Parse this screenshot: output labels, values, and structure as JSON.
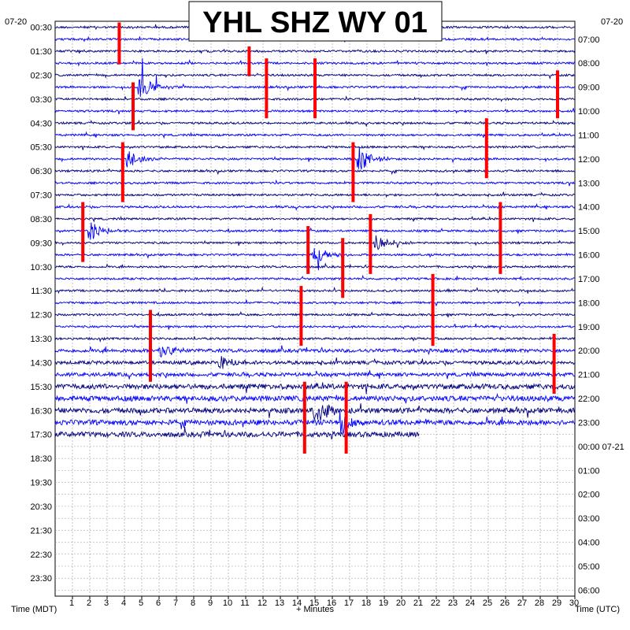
{
  "title": "YHL SHZ WY 01",
  "date_left": "07-20",
  "date_right": "07-20",
  "xlabel": "+ Minutes",
  "time_left_label": "Time (MDT)",
  "time_right_label": "Time (UTC)",
  "colors": {
    "trace_a": "#0000ff",
    "trace_b": "#000080",
    "alert": "#ff0000",
    "grid": "#9a9a9a"
  },
  "chart_data": {
    "type": "helicorder",
    "x_ticks": [
      "1",
      "2",
      "3",
      "4",
      "5",
      "6",
      "7",
      "8",
      "9",
      "10",
      "11",
      "12",
      "13",
      "14",
      "15",
      "16",
      "17",
      "18",
      "19",
      "20",
      "21",
      "22",
      "23",
      "24",
      "25",
      "26",
      "27",
      "28",
      "29",
      "30"
    ],
    "xlim": [
      0,
      30
    ],
    "left_ticks": [
      "00:30",
      "01:30",
      "02:30",
      "03:30",
      "04:30",
      "05:30",
      "06:30",
      "07:30",
      "08:30",
      "09:30",
      "10:30",
      "11:30",
      "12:30",
      "13:30",
      "14:30",
      "15:30",
      "16:30",
      "17:30",
      "18:30",
      "19:30",
      "20:30",
      "21:30",
      "22:30",
      "23:30"
    ],
    "right_ticks": [
      "07:00",
      "08:00",
      "09:00",
      "10:00",
      "11:00",
      "12:00",
      "13:00",
      "14:00",
      "15:00",
      "16:00",
      "17:00",
      "18:00",
      "19:00",
      "20:00",
      "21:00",
      "22:00",
      "23:00",
      "00:00 07-21",
      "01:00",
      "02:00",
      "03:00",
      "04:00",
      "05:00",
      "06:00"
    ],
    "trace_rows": 35,
    "total_rows": 48,
    "row_minutes": 30,
    "grid": true,
    "events": [
      {
        "row": 0,
        "minute": 3.7,
        "span_rows": 3.5
      },
      {
        "row": 2,
        "minute": 11.2,
        "span_rows": 2.5
      },
      {
        "row": 3,
        "minute": 12.2,
        "span_rows": 5
      },
      {
        "row": 3,
        "minute": 15.0,
        "span_rows": 5
      },
      {
        "row": 4,
        "minute": 29.0,
        "span_rows": 4
      },
      {
        "row": 5,
        "minute": 4.5,
        "span_rows": 4
      },
      {
        "row": 8,
        "minute": 24.9,
        "span_rows": 5
      },
      {
        "row": 10,
        "minute": 17.2,
        "span_rows": 5
      },
      {
        "row": 10,
        "minute": 3.9,
        "span_rows": 5
      },
      {
        "row": 15,
        "minute": 1.6,
        "span_rows": 5
      },
      {
        "row": 15,
        "minute": 25.7,
        "span_rows": 6
      },
      {
        "row": 16,
        "minute": 18.2,
        "span_rows": 5
      },
      {
        "row": 17,
        "minute": 14.6,
        "span_rows": 4
      },
      {
        "row": 18,
        "minute": 16.6,
        "span_rows": 5
      },
      {
        "row": 21,
        "minute": 21.8,
        "span_rows": 6
      },
      {
        "row": 22,
        "minute": 14.2,
        "span_rows": 5
      },
      {
        "row": 24,
        "minute": 5.5,
        "span_rows": 6
      },
      {
        "row": 26,
        "minute": 28.8,
        "span_rows": 5
      },
      {
        "row": 30,
        "minute": 14.4,
        "span_rows": 6
      },
      {
        "row": 30,
        "minute": 16.8,
        "span_rows": 6
      }
    ],
    "bursts": [
      {
        "row": 5,
        "minute": 4.9,
        "amp": 2.5
      },
      {
        "row": 11,
        "minute": 17.5,
        "amp": 3
      },
      {
        "row": 11,
        "minute": 4.2,
        "amp": 2.2
      },
      {
        "row": 17,
        "minute": 2.0,
        "amp": 2
      },
      {
        "row": 18,
        "minute": 18.5,
        "amp": 2
      },
      {
        "row": 19,
        "minute": 14.9,
        "amp": 2
      },
      {
        "row": 27,
        "minute": 6.0,
        "amp": 2
      },
      {
        "row": 28,
        "minute": 9.5,
        "amp": 1.6
      },
      {
        "row": 32,
        "minute": 15.0,
        "amp": 3
      },
      {
        "row": 33,
        "minute": 16.5,
        "amp": 2.5
      }
    ]
  }
}
